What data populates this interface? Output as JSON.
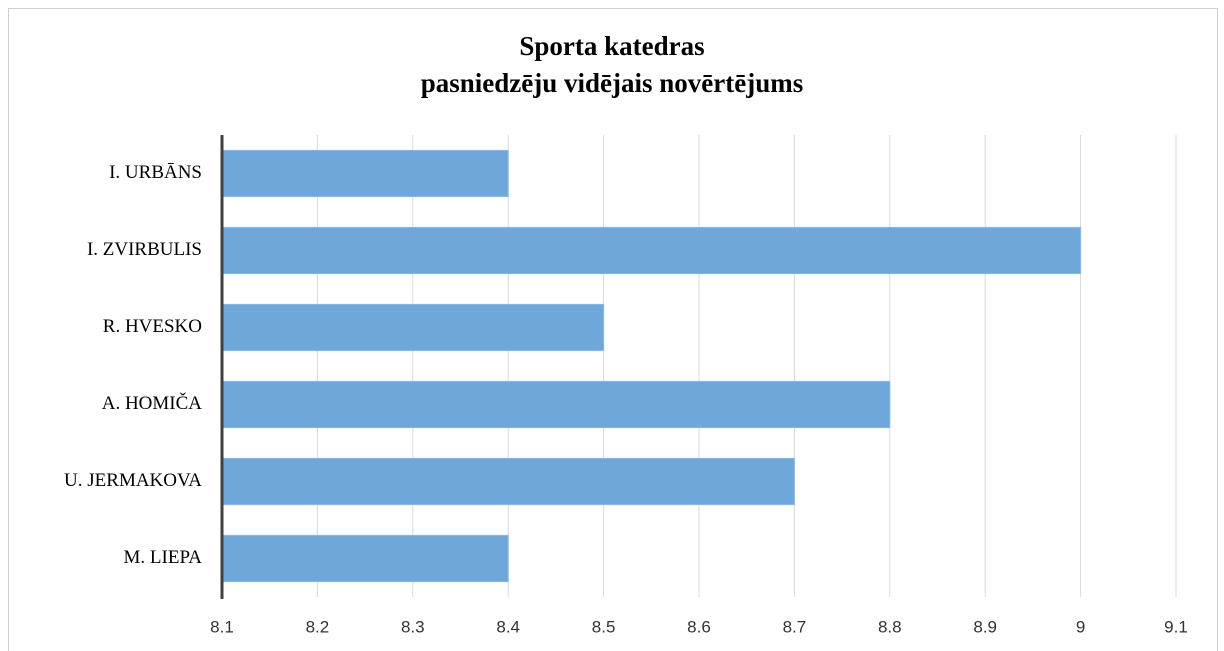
{
  "chart_data": {
    "type": "bar",
    "orientation": "horizontal",
    "title": [
      "Sporta katedras",
      "pasniedzēju vidējais novērtējums"
    ],
    "categories": [
      "I. URBĀNS",
      "I. ZVIRBULIS",
      "R. HVESKO",
      "A. HOMIČA",
      "U. JERMAKOVA",
      "M. LIEPA"
    ],
    "values": [
      8.4,
      9,
      8.5,
      8.8,
      8.7,
      8.4
    ],
    "color": "#70a7db",
    "xlim": [
      8.1,
      9.1
    ],
    "xticks": [
      8.1,
      8.2,
      8.3,
      8.4,
      8.5,
      8.6,
      8.7,
      8.8,
      8.9,
      9,
      9.1
    ],
    "grid": true
  }
}
